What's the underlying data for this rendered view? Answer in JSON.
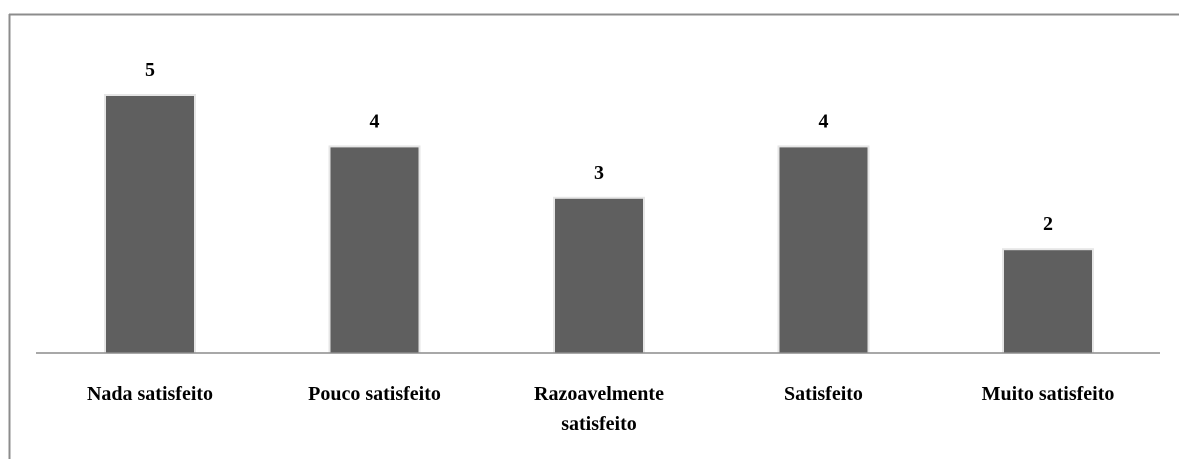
{
  "chart_data": {
    "type": "bar",
    "categories": [
      [
        "Nada satisfeito"
      ],
      [
        "Pouco satisfeito"
      ],
      [
        "Razoavelmente",
        "satisfeito"
      ],
      [
        "Satisfeito"
      ],
      [
        "Muito satisfeito"
      ]
    ],
    "values": [
      5,
      4,
      3,
      4,
      2
    ],
    "data_labels": [
      "5",
      "4",
      "3",
      "4",
      "2"
    ],
    "title": "",
    "xlabel": "",
    "ylabel": "",
    "ylim": [
      0,
      5
    ],
    "grid": false,
    "legend": "none",
    "bar_color": "#5f5f5f",
    "bar_edge_color": "#e6e6e6",
    "axis_color": "#8c8c8c",
    "frame_color": "#8c8c8c"
  }
}
